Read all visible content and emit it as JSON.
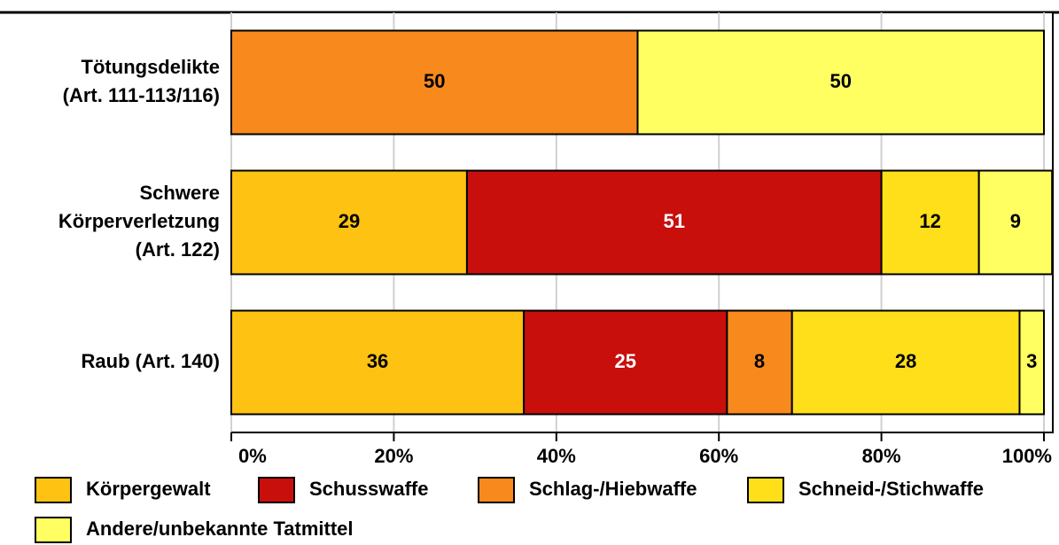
{
  "chart_data": {
    "type": "stacked-barh",
    "categories": [
      [
        "Tötungsdelikte",
        "(Art. 111-113/116)"
      ],
      [
        "Schwere",
        "Körperverletzung",
        "(Art. 122)"
      ],
      [
        "Raub (Art. 140)"
      ]
    ],
    "series": [
      {
        "name": "Körpergewalt",
        "color": "#fdc212",
        "values": [
          null,
          29,
          36
        ]
      },
      {
        "name": "Schusswaffe",
        "color": "#c80f0c",
        "values": [
          null,
          51,
          25
        ]
      },
      {
        "name": "Schlag-/Hiebwaffe",
        "color": "#f7891d",
        "values": [
          50,
          null,
          8
        ]
      },
      {
        "name": "Schneid-/Stichwaffe",
        "color": "#ffdf1a",
        "values": [
          null,
          12,
          28
        ]
      },
      {
        "name": "Andere/unbekannte Tatmittel",
        "color": "#ffff62",
        "values": [
          50,
          9,
          3
        ]
      }
    ],
    "xlim": [
      0,
      100
    ],
    "xticks": [
      {
        "value": 0,
        "label": "0%"
      },
      {
        "value": 20,
        "label": "20%"
      },
      {
        "value": 40,
        "label": "40%"
      },
      {
        "value": 60,
        "label": "60%"
      },
      {
        "value": 80,
        "label": "80%"
      },
      {
        "value": 100,
        "label": "100%"
      }
    ],
    "grid": true
  }
}
